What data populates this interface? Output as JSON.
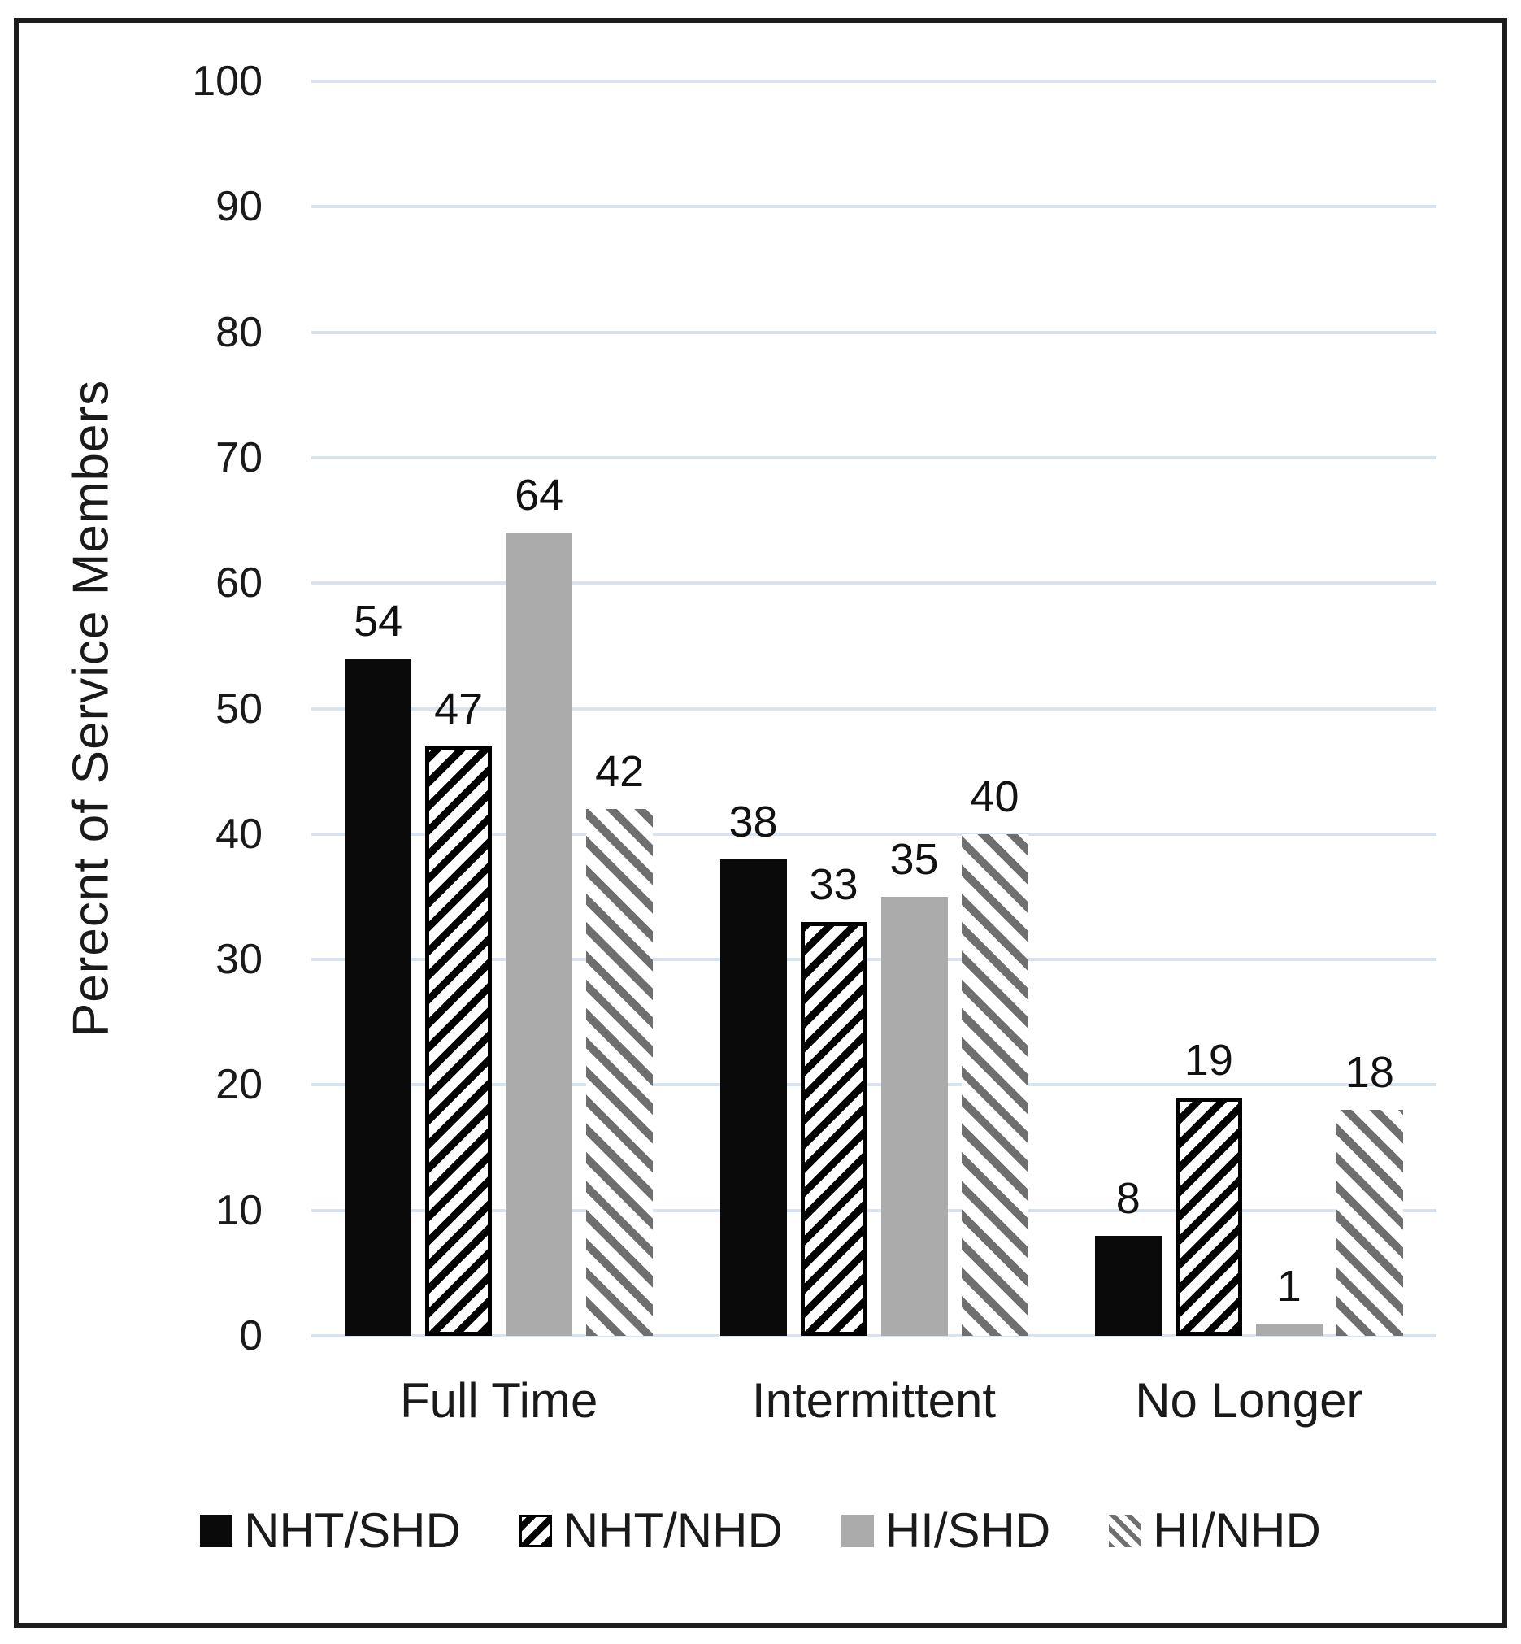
{
  "chart_data": {
    "type": "bar",
    "title": "",
    "ylabel": "Perecnt of Service Members",
    "xlabel": "",
    "categories": [
      "Full Time",
      "Intermittent",
      "No Longer"
    ],
    "series": [
      {
        "name": "NHT/SHD",
        "style": "solid-black",
        "values": [
          54,
          38,
          8
        ]
      },
      {
        "name": "NHT/NHD",
        "style": "black-hatch-forward",
        "values": [
          47,
          33,
          19
        ]
      },
      {
        "name": "HI/SHD",
        "style": "solid-gray",
        "values": [
          64,
          35,
          1
        ]
      },
      {
        "name": "HI/NHD",
        "style": "gray-hatch-back",
        "values": [
          42,
          40,
          18
        ]
      }
    ],
    "ylim": [
      0,
      100
    ],
    "ytick_step": 10,
    "grid": true,
    "data_labels": true,
    "legend_position": "bottom"
  },
  "colors": {
    "bar_black": "#0a0a0a",
    "bar_gray": "#ababab",
    "hatch_gray": "#6f6f6f",
    "gridline": "#d9e3ef",
    "text": "#1a1a1a",
    "frame_border": "#1c1c1c"
  }
}
